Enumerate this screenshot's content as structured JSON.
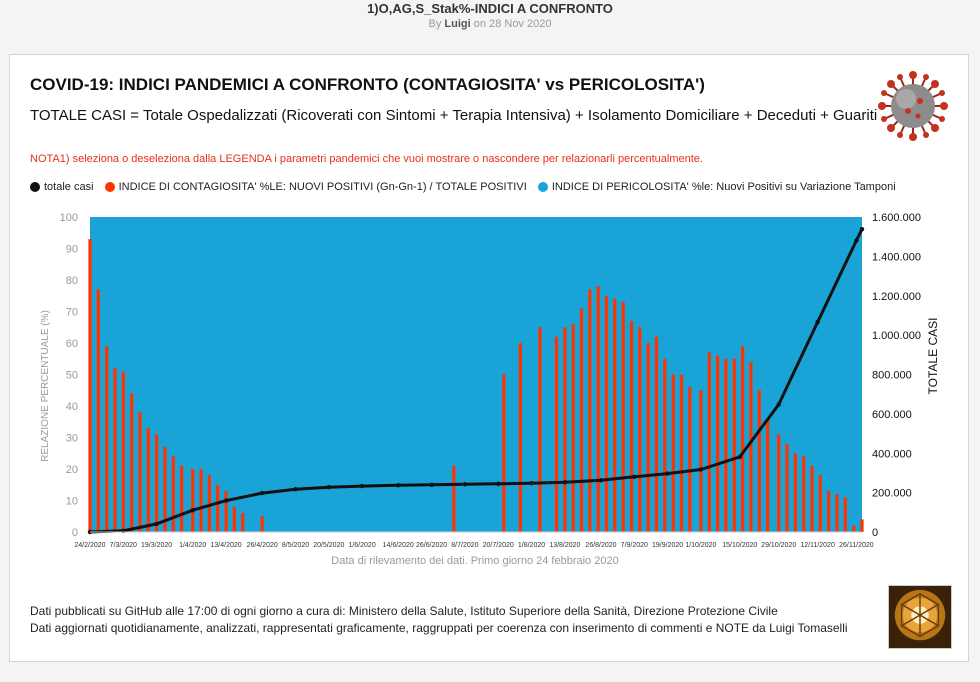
{
  "page": {
    "title": "1)O,AG,S_Stak%-INDICI A CONFRONTO",
    "by_prefix": "By",
    "author": "Luigi",
    "date_prefix": "on",
    "date": "28 Nov 2020"
  },
  "card": {
    "title": "COVID-19: INDICI PANDEMICI A CONFRONTO (CONTAGIOSITA' vs PERICOLOSITA')",
    "subtitle": "TOTALE CASI = Totale Ospedalizzati (Ricoverati con Sintomi + Terapia Intensiva) + Isolamento Domiciliare + Deceduti + Guariti",
    "note": "NOTA1) seleziona o deseleziona dalla LEGENDA i parametri pandemici che vuoi mostrare o nascondere per relazionarli percentualmente.",
    "footer_line1": "Dati pubblicati su GitHub alle 17:00 di ogni giorno a cura di: Ministero della Salute, Istituto Superiore della Sanità, Direzione Protezione Civile",
    "footer_line2": "Dati aggiornati quotidianamente, analizzati, rappresentati graficamente, raggruppati per coerenza con inserimento di commenti e NOTE da Luigi Tomaselli"
  },
  "colors": {
    "contagiosita": "#ff3300",
    "pericolosita": "#1aa3d6",
    "totale": "#111111",
    "note": "#e8301b"
  },
  "icons": {
    "virus": "coronavirus-icon",
    "photo": "ornament-photo"
  },
  "chart_data": {
    "type": "bar",
    "legend_position": "top-left",
    "xlabel": "Data di rilevamento dei dati. Primo giorno 24 febbraio 2020",
    "ylabel": "RELAZIONE PERCENTUALE (%)",
    "y2label": "TOTALE CASI",
    "ylim": [
      0,
      100
    ],
    "y2lim": [
      0,
      1600000
    ],
    "yticks": [
      "0",
      "10",
      "20",
      "30",
      "40",
      "50",
      "60",
      "70",
      "80",
      "90",
      "100"
    ],
    "y2ticks": [
      "0",
      "200.000",
      "400.000",
      "600.000",
      "800.000",
      "1.000.000",
      "1.200.000",
      "1.400.000",
      "1.600.000"
    ],
    "xticks": [
      "24/2/2020",
      "7/3/2020",
      "19/3/2020",
      "1/4/2020",
      "13/4/2020",
      "26/4/2020",
      "8/5/2020",
      "20/5/2020",
      "1/6/2020",
      "14/6/2020",
      "26/6/2020",
      "8/7/2020",
      "20/7/2020",
      "1/8/2020",
      "13/8/2020",
      "26/8/2020",
      "7/9/2020",
      "19/9/2020",
      "1/10/2020",
      "15/10/2020",
      "29/10/2020",
      "12/11/2020",
      "26/11/2020"
    ],
    "series": [
      {
        "name": "totale casi",
        "type": "line",
        "axis": "right",
        "x": [
          "24/2/2020",
          "7/3/2020",
          "19/3/2020",
          "1/4/2020",
          "13/4/2020",
          "26/4/2020",
          "8/5/2020",
          "20/5/2020",
          "1/6/2020",
          "14/6/2020",
          "26/6/2020",
          "8/7/2020",
          "20/7/2020",
          "1/8/2020",
          "13/8/2020",
          "26/8/2020",
          "7/9/2020",
          "19/9/2020",
          "1/10/2020",
          "15/10/2020",
          "29/10/2020",
          "12/11/2020",
          "26/11/2020",
          "28/11/2020"
        ],
        "values": [
          229,
          5883,
          41035,
          110574,
          159516,
          197675,
          217185,
          227364,
          233197,
          236989,
          239961,
          242363,
          244752,
          248070,
          252235,
          262540,
          280153,
          296569,
          317409,
          381602,
          647674,
          1066401,
          1480874,
          1538217
        ]
      },
      {
        "name": "INDICE DI CONTAGIOSITA' %LE: NUOVI POSITIVI (Gn-Gn-1) / TOTALE POSITIVI",
        "type": "bar",
        "axis": "left",
        "x": [
          "24/2/2020",
          "27/2/2020",
          "1/3/2020",
          "4/3/2020",
          "7/3/2020",
          "10/3/2020",
          "13/3/2020",
          "16/3/2020",
          "19/3/2020",
          "22/3/2020",
          "25/3/2020",
          "28/3/2020",
          "1/4/2020",
          "4/4/2020",
          "7/4/2020",
          "10/4/2020",
          "13/4/2020",
          "16/4/2020",
          "19/4/2020",
          "26/4/2020",
          "4/7/2020",
          "22/7/2020",
          "28/7/2020",
          "4/8/2020",
          "10/8/2020",
          "13/8/2020",
          "16/8/2020",
          "19/8/2020",
          "22/8/2020",
          "25/8/2020",
          "28/8/2020",
          "31/8/2020",
          "3/9/2020",
          "6/9/2020",
          "9/9/2020",
          "12/9/2020",
          "15/9/2020",
          "18/9/2020",
          "21/9/2020",
          "24/9/2020",
          "27/9/2020",
          "1/10/2020",
          "4/10/2020",
          "7/10/2020",
          "10/10/2020",
          "13/10/2020",
          "16/10/2020",
          "19/10/2020",
          "22/10/2020",
          "25/10/2020",
          "29/10/2020",
          "1/11/2020",
          "4/11/2020",
          "7/11/2020",
          "10/11/2020",
          "13/11/2020",
          "16/11/2020",
          "19/11/2020",
          "22/11/2020",
          "25/11/2020",
          "28/11/2020"
        ],
        "values": [
          93,
          77,
          59,
          52,
          51,
          44,
          38,
          33,
          31,
          27,
          24,
          21,
          20,
          20,
          18,
          15,
          13,
          8,
          6,
          5,
          21,
          50,
          60,
          65,
          62,
          65,
          66,
          71,
          77,
          78,
          75,
          74,
          73,
          67,
          65,
          60,
          62,
          55,
          50,
          50,
          46,
          45,
          57,
          56,
          55,
          55,
          59,
          54,
          45,
          36,
          31,
          28,
          25,
          24,
          21,
          18,
          13,
          12,
          11,
          2,
          4
        ]
      },
      {
        "name": "INDICE DI PERICOLOSITA' %le: Nuovi Positivi su Variazione Tamponi",
        "type": "bar",
        "axis": "left",
        "note": "stacked fill, complement to 100%",
        "values_constant": 100
      }
    ]
  }
}
